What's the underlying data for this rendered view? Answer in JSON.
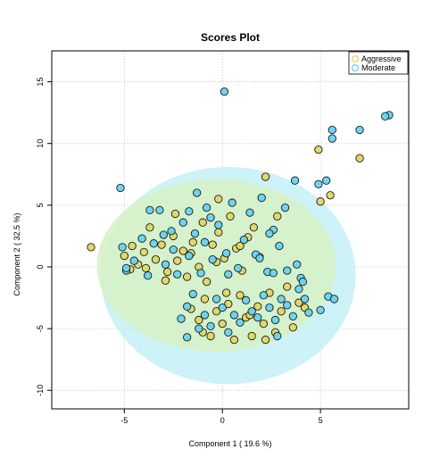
{
  "chart_data": {
    "type": "scatter",
    "title": "Scores Plot",
    "xlabel": "Component 1 ( 19.6 %)",
    "ylabel": "Component 2 ( 32.5 %)",
    "xlim": [
      -8.7,
      9.5
    ],
    "ylim": [
      -11.5,
      17.5
    ],
    "x_ticks": [
      -5,
      0,
      5
    ],
    "y_ticks": [
      -10,
      -5,
      0,
      5,
      10,
      15
    ],
    "x_tick_labels": [
      "-5",
      "0",
      "5"
    ],
    "y_tick_labels": [
      "-10",
      "-5",
      "0",
      "5",
      "10",
      "15"
    ],
    "grid": true,
    "legend_position": "top-right",
    "series": [
      {
        "name": "Aggressive",
        "color": "#e3d663",
        "ellipse": {
          "center": [
            -0.3,
            0.1
          ],
          "radii": [
            6.1,
            7.0
          ],
          "fill": "#d6f2c6"
        },
        "points": [
          [
            -6.7,
            1.6
          ],
          [
            -5.0,
            0.9
          ],
          [
            -4.6,
            1.7
          ],
          [
            -4.3,
            0.2
          ],
          [
            -4.0,
            1.2
          ],
          [
            -3.7,
            3.2
          ],
          [
            -3.4,
            0.6
          ],
          [
            -3.1,
            1.8
          ],
          [
            -2.8,
            -0.4
          ],
          [
            -2.5,
            2.5
          ],
          [
            -2.3,
            0.5
          ],
          [
            -2.0,
            1.3
          ],
          [
            -1.8,
            -0.8
          ],
          [
            -1.5,
            2.0
          ],
          [
            -1.2,
            0.0
          ],
          [
            -1.0,
            3.6
          ],
          [
            -0.8,
            -1.2
          ],
          [
            -0.5,
            1.8
          ],
          [
            -0.2,
            2.8
          ],
          [
            0.1,
            0.7
          ],
          [
            0.4,
            4.1
          ],
          [
            0.7,
            1.5
          ],
          [
            1.0,
            -0.3
          ],
          [
            1.3,
            2.4
          ],
          [
            1.6,
            3.2
          ],
          [
            1.9,
            0.8
          ],
          [
            -2.9,
            -1.1
          ],
          [
            -3.9,
            -0.1
          ],
          [
            -1.6,
            1.1
          ],
          [
            -0.3,
            0.4
          ],
          [
            -1.6,
            -3.4
          ],
          [
            -1.2,
            -4.3
          ],
          [
            -0.9,
            -2.6
          ],
          [
            -0.6,
            -5.6
          ],
          [
            -0.3,
            -3.6
          ],
          [
            0.0,
            -4.6
          ],
          [
            0.3,
            -3.0
          ],
          [
            0.6,
            -5.9
          ],
          [
            0.9,
            -2.3
          ],
          [
            1.2,
            -4.1
          ],
          [
            1.5,
            -5.6
          ],
          [
            1.8,
            -3.2
          ],
          [
            2.1,
            -4.6
          ],
          [
            2.4,
            -2.1
          ],
          [
            2.7,
            -5.3
          ],
          [
            3.0,
            -3.6
          ],
          [
            3.3,
            -1.6
          ],
          [
            3.6,
            -4.9
          ],
          [
            3.9,
            -2.9
          ],
          [
            -1.0,
            -5.3
          ],
          [
            0.2,
            -2.1
          ],
          [
            1.4,
            -3.9
          ],
          [
            2.2,
            -5.9
          ],
          [
            4.2,
            -3.3
          ],
          [
            -0.2,
            5.5
          ],
          [
            2.2,
            7.3
          ],
          [
            4.9,
            9.5
          ],
          [
            5.5,
            5.8
          ],
          [
            7.0,
            8.8
          ],
          [
            5.0,
            5.3
          ],
          [
            -2.4,
            4.3
          ],
          [
            2.8,
            4.1
          ],
          [
            -4.7,
            -0.2
          ],
          [
            0.9,
            1.7
          ]
        ]
      },
      {
        "name": "Moderate",
        "color": "#67d3ef",
        "ellipse": {
          "center": [
            0.3,
            -0.7
          ],
          "radii": [
            6.5,
            8.8
          ],
          "fill": "#c4f0f6"
        },
        "points": [
          [
            0.1,
            14.2
          ],
          [
            -5.2,
            6.4
          ],
          [
            5.6,
            11.1
          ],
          [
            5.6,
            10.4
          ],
          [
            7.0,
            11.1
          ],
          [
            8.5,
            12.3
          ],
          [
            8.3,
            12.2
          ],
          [
            3.7,
            7.0
          ],
          [
            4.9,
            6.7
          ],
          [
            5.3,
            7.0
          ],
          [
            -1.3,
            6.0
          ],
          [
            -1.7,
            4.5
          ],
          [
            -5.1,
            1.6
          ],
          [
            -4.9,
            -0.3
          ],
          [
            -4.5,
            0.5
          ],
          [
            -4.1,
            2.3
          ],
          [
            -3.8,
            -0.7
          ],
          [
            -3.5,
            1.9
          ],
          [
            -3.2,
            4.6
          ],
          [
            -2.9,
            0.2
          ],
          [
            -2.6,
            2.9
          ],
          [
            -2.3,
            -0.6
          ],
          [
            -2.0,
            3.6
          ],
          [
            -1.7,
            0.9
          ],
          [
            -1.4,
            2.7
          ],
          [
            -1.1,
            -0.5
          ],
          [
            -0.8,
            4.8
          ],
          [
            -0.5,
            0.6
          ],
          [
            -0.2,
            3.4
          ],
          [
            0.2,
            1.1
          ],
          [
            0.5,
            5.2
          ],
          [
            0.8,
            -0.1
          ],
          [
            1.1,
            2.2
          ],
          [
            1.4,
            4.4
          ],
          [
            1.7,
            1.0
          ],
          [
            2.0,
            5.6
          ],
          [
            2.3,
            -0.4
          ],
          [
            2.6,
            3.0
          ],
          [
            2.9,
            1.7
          ],
          [
            3.2,
            4.8
          ],
          [
            2.4,
            2.7
          ],
          [
            -2.5,
            1.4
          ],
          [
            -2.1,
            -4.2
          ],
          [
            -1.8,
            -3.2
          ],
          [
            -1.5,
            -2.2
          ],
          [
            -1.2,
            -5.0
          ],
          [
            -0.9,
            -3.9
          ],
          [
            -0.6,
            -4.8
          ],
          [
            -0.3,
            -2.6
          ],
          [
            0.0,
            -3.3
          ],
          [
            0.3,
            -5.3
          ],
          [
            0.6,
            -3.9
          ],
          [
            0.9,
            -4.5
          ],
          [
            1.2,
            -2.7
          ],
          [
            1.5,
            -3.6
          ],
          [
            1.8,
            -4.1
          ],
          [
            2.1,
            -2.3
          ],
          [
            2.4,
            -3.3
          ],
          [
            2.7,
            -4.3
          ],
          [
            3.0,
            -2.6
          ],
          [
            3.3,
            -3.1
          ],
          [
            3.6,
            -4.0
          ],
          [
            3.9,
            -1.8
          ],
          [
            4.2,
            -2.6
          ],
          [
            4.4,
            -3.7
          ],
          [
            4.0,
            -0.9
          ],
          [
            2.6,
            -0.5
          ],
          [
            3.3,
            -0.3
          ],
          [
            3.8,
            0.2
          ],
          [
            4.1,
            -1.2
          ],
          [
            2.8,
            -5.6
          ],
          [
            -1.8,
            -5.7
          ],
          [
            5.4,
            -2.4
          ],
          [
            5.7,
            -2.6
          ],
          [
            5.0,
            -3.5
          ],
          [
            -0.6,
            4.0
          ],
          [
            -3.7,
            4.6
          ],
          [
            -4.9,
            -0.1
          ],
          [
            0.3,
            -0.6
          ],
          [
            1.9,
            0.7
          ],
          [
            -3.0,
            2.6
          ],
          [
            -0.9,
            2.0
          ]
        ]
      }
    ]
  }
}
